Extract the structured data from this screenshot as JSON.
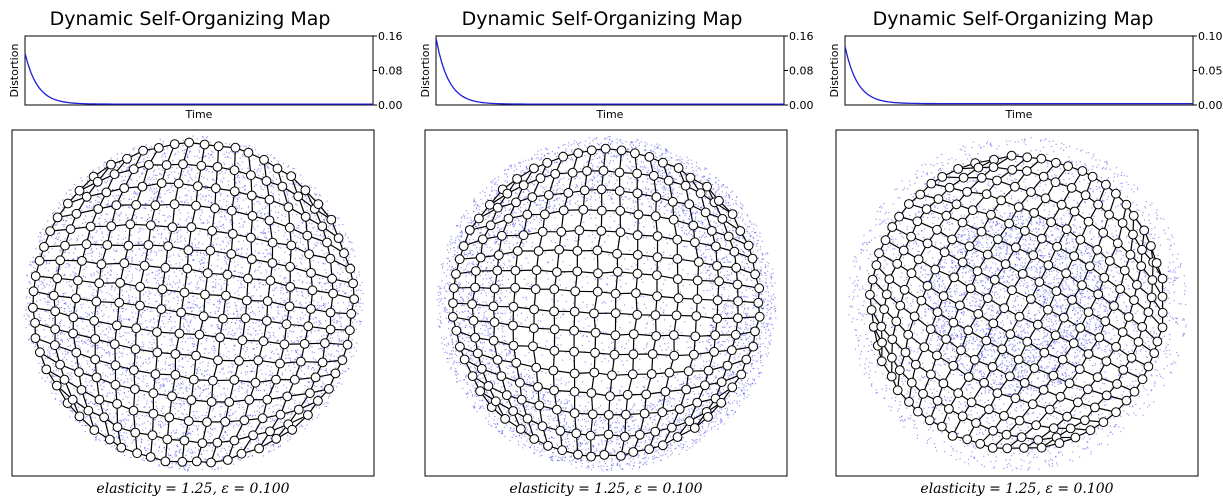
{
  "chart_data": [
    {
      "type": "line+scatter",
      "title": "Dynamic Self-Organizing Map",
      "distortion": {
        "xlabel": "Time",
        "ylabel": "Distortion",
        "ylim": [
          0.0,
          0.16
        ],
        "yticks": [
          "0.16",
          "0.08",
          "0.00"
        ],
        "series_color": "#1f1fd6",
        "start_value": 0.12,
        "final_value": 0.002
      },
      "map": {
        "distribution": "uniform disc",
        "sample_color": "#2424e8",
        "grid": [
          16,
          16
        ],
        "node_fill": "#ffffff",
        "edge_color": "#000000"
      },
      "caption": "elasticity = 1.25, ε = 0.100"
    },
    {
      "type": "line+scatter",
      "title": "Dynamic Self-Organizing Map",
      "distortion": {
        "xlabel": "Time",
        "ylabel": "Distortion",
        "ylim": [
          0.0,
          0.16
        ],
        "yticks": [
          "0.16",
          "0.08",
          "0.00"
        ],
        "series_color": "#1f1fd6",
        "start_value": 0.155,
        "final_value": 0.002
      },
      "map": {
        "distribution": "ring-weighted disc",
        "sample_color": "#2424e8",
        "grid": [
          16,
          16
        ],
        "node_fill": "#ffffff",
        "edge_color": "#000000"
      },
      "caption": "elasticity = 1.25, ε = 0.100"
    },
    {
      "type": "line+scatter",
      "title": "Dynamic Self-Organizing Map",
      "distortion": {
        "xlabel": "Time",
        "ylabel": "Distortion",
        "ylim": [
          0.0,
          0.1
        ],
        "yticks": [
          "0.10",
          "0.05",
          "0.00"
        ],
        "series_color": "#1f1fd6",
        "start_value": 0.085,
        "final_value": 0.002
      },
      "map": {
        "distribution": "center-ring-weighted disc",
        "sample_color": "#2424e8",
        "grid": [
          16,
          16
        ],
        "node_fill": "#ffffff",
        "edge_color": "#000000"
      },
      "caption": "elasticity = 1.25, ε = 0.100"
    }
  ]
}
